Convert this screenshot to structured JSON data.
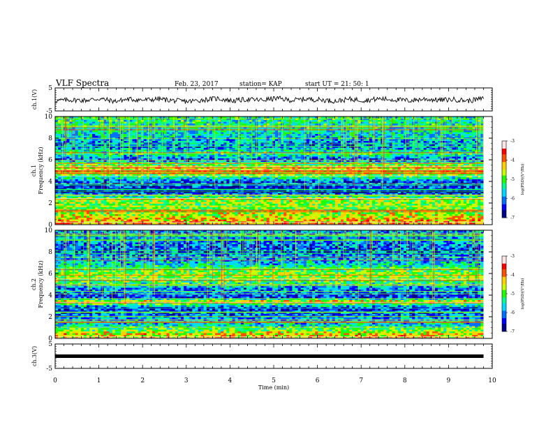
{
  "header": {
    "title": "VLF Spectra",
    "date": "Feb. 23, 2017",
    "station": "station= KAP",
    "start": "start  UT =   21: 50: 1"
  },
  "chart_data": [
    {
      "type": "line",
      "panel": "ch1-waveform",
      "ylabel": "ch.1(V)",
      "ylim": [
        -5,
        5
      ],
      "yticks": [
        "5",
        "-5"
      ],
      "x_range_min": [
        0,
        9.8
      ],
      "values_trace_volts_approx": [
        -0.6,
        -0.2,
        -0.4,
        0.3,
        -0.8,
        0.1,
        -0.3,
        0.2,
        -0.5,
        -0.9,
        -0.2,
        0.4,
        -0.6,
        0.0,
        -0.3,
        0.5,
        -0.4,
        0.2,
        -0.2,
        -0.7,
        0.1,
        -0.4,
        0.3,
        -0.1,
        -0.5,
        0.2,
        -0.3,
        0.0,
        -0.6,
        0.4
      ]
    },
    {
      "type": "heatmap",
      "panel": "ch1-spectrogram",
      "ylabel": "ch.1",
      "ylabel2": "Frequency  (kHz)",
      "ylim": [
        0,
        10
      ],
      "yticks": [
        "0",
        "2",
        "4",
        "6",
        "8",
        "10"
      ],
      "color_scale": {
        "min": -7,
        "max": -3,
        "label": "log(PSD)(V²/Hz)",
        "ticks": [
          "-3",
          "-4",
          "-5",
          "-6",
          "-7"
        ]
      },
      "bands_kHz_log_psd": [
        [
          0.3,
          -4.2
        ],
        [
          0.8,
          -4.6
        ],
        [
          1.8,
          -4.9
        ],
        [
          2.4,
          -4.7
        ],
        [
          3.0,
          -6.6
        ],
        [
          3.3,
          -6.5
        ],
        [
          4.0,
          -6.2
        ],
        [
          4.8,
          -4.5
        ],
        [
          5.3,
          -4.4
        ],
        [
          6.0,
          -6.3
        ],
        [
          6.6,
          -5.2
        ],
        [
          7.2,
          -6.1
        ],
        [
          8.3,
          -5.6
        ],
        [
          9.5,
          -5.4
        ]
      ]
    },
    {
      "type": "heatmap",
      "panel": "ch2-spectrogram",
      "ylabel": "ch.2",
      "ylabel2": "Frequency  (kHz)",
      "ylim": [
        0,
        10
      ],
      "yticks": [
        "0",
        "2",
        "4",
        "6",
        "8",
        "10"
      ],
      "color_scale": {
        "min": -7,
        "max": -3,
        "label": "log(PSD)(V²/Hz)",
        "ticks": [
          "-3",
          "-4",
          "-5",
          "-6",
          "-7"
        ]
      },
      "bands_kHz_log_psd": [
        [
          0.4,
          -4.4
        ],
        [
          1.2,
          -5.6
        ],
        [
          2.0,
          -6.0
        ],
        [
          2.8,
          -6.4
        ],
        [
          3.4,
          -4.3
        ],
        [
          3.8,
          -6.3
        ],
        [
          4.6,
          -6.0
        ],
        [
          5.4,
          -4.9
        ],
        [
          6.0,
          -4.8
        ],
        [
          6.8,
          -5.6
        ],
        [
          8.0,
          -6.2
        ],
        [
          9.2,
          -5.9
        ]
      ]
    },
    {
      "type": "line",
      "panel": "ch3-waveform",
      "ylabel": "ch.3(V)",
      "ylim": [
        -5,
        5
      ],
      "yticks": [
        "5",
        "-5"
      ],
      "x_range_min": [
        0,
        9.8
      ],
      "values_trace_volts_approx": [
        0.0,
        0.0
      ]
    }
  ],
  "xaxis": {
    "label": "Time  (min)",
    "ticks": [
      "0",
      "1",
      "2",
      "3",
      "4",
      "5",
      "6",
      "7",
      "8",
      "9",
      "10"
    ]
  },
  "colors": {
    "colormap": [
      "#00008c",
      "#0000ff",
      "#0070ff",
      "#00d8ff",
      "#00ff90",
      "#20ff00",
      "#c8ff00",
      "#ffd000",
      "#ff5000",
      "#ff0000",
      "#ffe4e4"
    ],
    "trace": "#000000",
    "frame": "#000000"
  }
}
